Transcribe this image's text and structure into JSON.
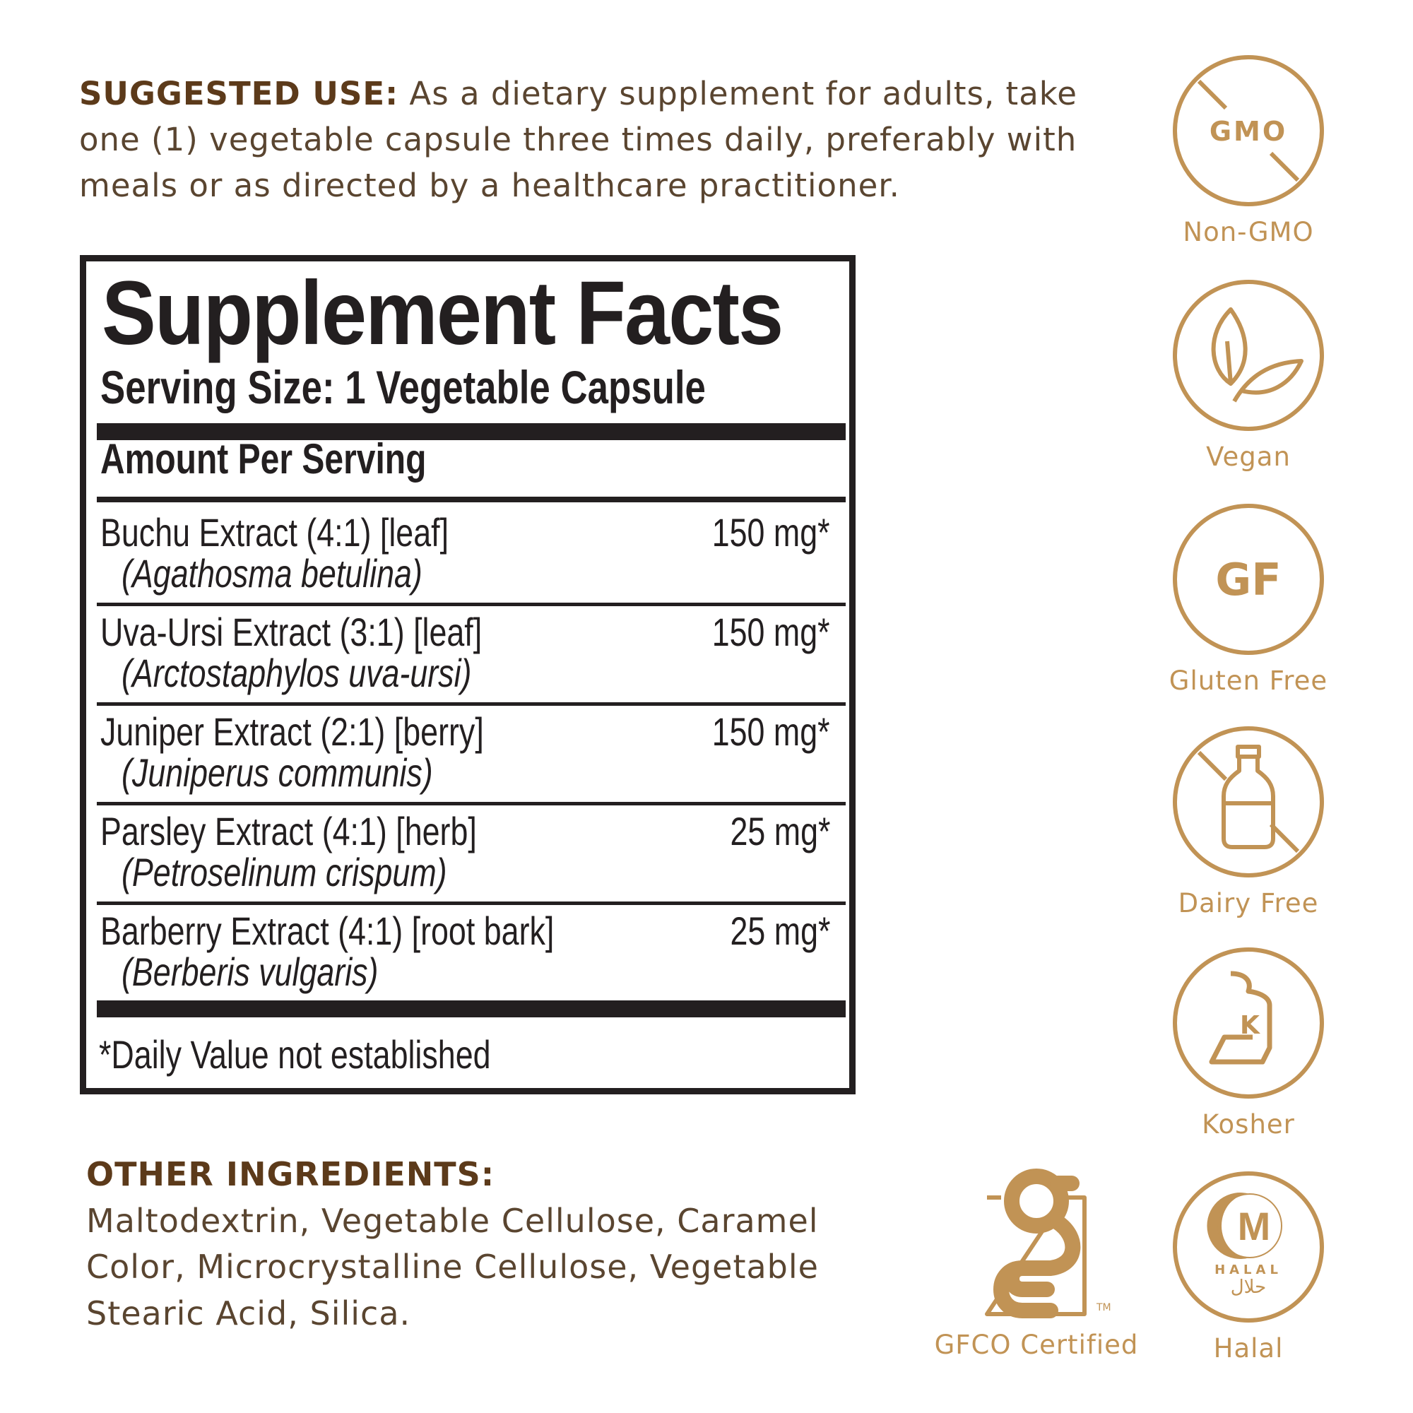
{
  "suggested_use": {
    "heading": "SUGGESTED USE:",
    "text": " As a dietary supplement for adults, take one (1) vegetable capsule three times daily, preferably with meals or as directed by a healthcare practitioner."
  },
  "facts": {
    "title": "Supplement Facts",
    "serving_size": "Serving Size: 1 Vegetable Capsule",
    "amount_per_serving": "Amount Per Serving",
    "rows": [
      {
        "name": "Buchu Extract (4:1) [leaf]",
        "species": "(Agathosma betulina)",
        "amount": "150 mg*"
      },
      {
        "name": "Uva-Ursi Extract (3:1) [leaf]",
        "species": "(Arctostaphylos uva-ursi)",
        "amount": "150 mg*"
      },
      {
        "name": "Juniper Extract (2:1) [berry]",
        "species": "(Juniperus communis)",
        "amount": "150 mg*"
      },
      {
        "name": "Parsley Extract (4:1) [herb]",
        "species": "(Petroselinum crispum)",
        "amount": "25 mg*"
      },
      {
        "name": "Barberry Extract (4:1) [root bark]",
        "species": "(Berberis vulgaris)",
        "amount": "25 mg*"
      }
    ],
    "footnote": "*Daily Value not established"
  },
  "other_ingredients": {
    "heading": "OTHER INGREDIENTS:",
    "text": "Maltodextrin, Vegetable Cellulose, Caramel Color, Microcrystalline Cellulose, Vegetable Stearic Acid, Silica."
  },
  "badges": [
    {
      "icon": "non-gmo-icon",
      "label": "Non-GMO",
      "glyph": "GMO"
    },
    {
      "icon": "vegan-leaf-icon",
      "label": "Vegan"
    },
    {
      "icon": "gluten-free-icon",
      "label": "Gluten Free",
      "glyph": "GF"
    },
    {
      "icon": "dairy-free-icon",
      "label": "Dairy Free"
    },
    {
      "icon": "kosher-icon",
      "label": "Kosher",
      "glyph": "K"
    },
    {
      "icon": "gfco-icon",
      "label": "GFCO Certified",
      "glyph": "TM"
    },
    {
      "icon": "halal-icon",
      "label": "Halal",
      "glyph": "M",
      "sub": "HALAL",
      "arabic": "حلال"
    }
  ],
  "colors": {
    "heading_brown": "#5c3a1a",
    "body_brown": "#5a4530",
    "gold": "#c19355",
    "label_black": "#231f20"
  }
}
